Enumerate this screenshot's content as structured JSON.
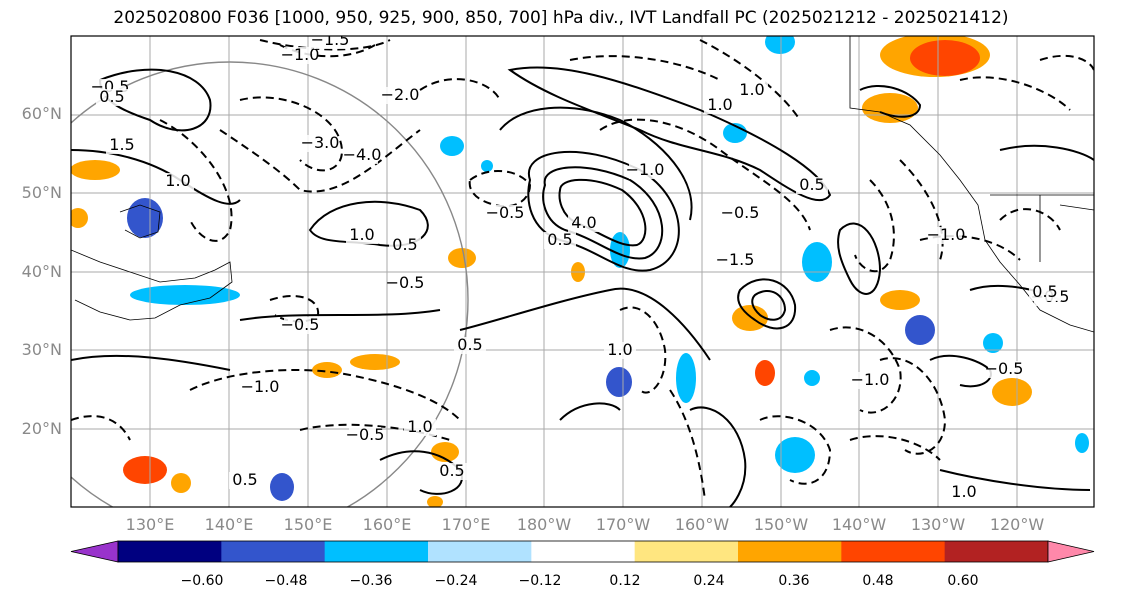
{
  "title": "2025020800 F036 [1000, 950, 925, 900, 850, 700] hPa div., IVT Landfall PC (2025021212 - 2025021412)",
  "lat_labels": [
    "60°N",
    "50°N",
    "40°N",
    "30°N",
    "20°N"
  ],
  "lon_labels": [
    "130°E",
    "140°E",
    "150°E",
    "160°E",
    "170°E",
    "180°W",
    "170°W",
    "160°W",
    "150°W",
    "140°W",
    "130°W",
    "120°W"
  ],
  "colorbar": {
    "colors": [
      "#9933cc",
      "#000080",
      "#3355cc",
      "#00bfff",
      "#b0e2ff",
      "#ffffff",
      "#ffe680",
      "#ffa500",
      "#ff4500",
      "#b22222",
      "#ff88aa"
    ],
    "ticks": [
      "−0.60",
      "−0.48",
      "−0.36",
      "−0.24",
      "−0.12",
      "0.12",
      "0.24",
      "0.36",
      "0.48",
      "0.60"
    ]
  },
  "contour_labels": [
    "−0.5",
    "−1.0",
    "−1.5",
    "−2.0",
    "−3.0",
    "−4.0",
    "0.5",
    "1.0",
    "1.5",
    "4.0",
    "−0.5",
    "1.0",
    "0.5",
    "−0.5",
    "−1.0",
    "−0.5",
    "1.0",
    "0.5",
    "−0.5",
    "0.5",
    "0.5",
    "−1.0",
    "1.0",
    "1.0",
    "0.5",
    "−0.5",
    "−1.0",
    "−1.5",
    "−0.5",
    "−0.5",
    "1.0",
    "0.5",
    "−1.0",
    "1.0",
    "0.5"
  ],
  "colors": {
    "grid": "#aaaaaa",
    "contour": "#000000",
    "circle": "#888888",
    "axis_label": "#8a8a8a"
  }
}
